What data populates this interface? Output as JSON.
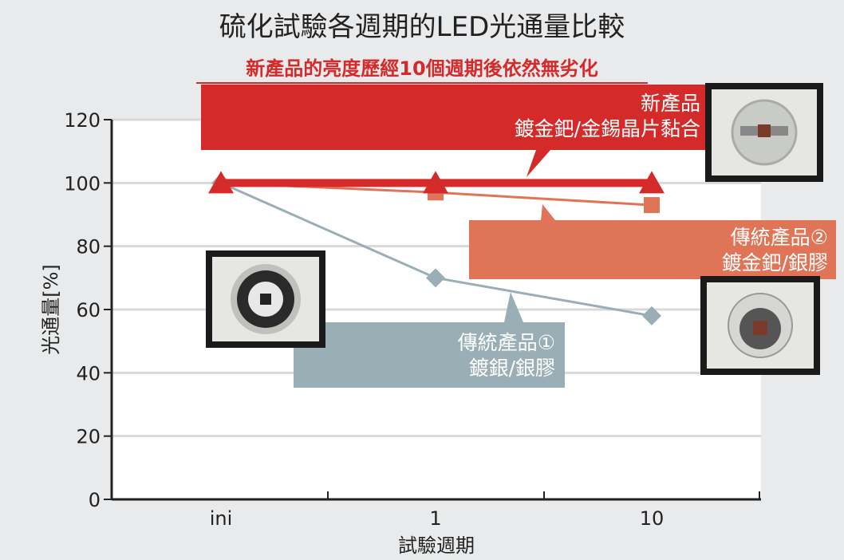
{
  "title": "硫化試驗各週期的LED光通量比較",
  "subtitle": "新產品的亮度歷經10個週期後依然無劣化",
  "callouts": {
    "new_product": {
      "line1": "新產品",
      "line2": "鍍金鈀/金錫晶片黏合"
    },
    "traditional_2": {
      "line1": "傳統產品②",
      "line2": "鍍金鈀/銀膠"
    },
    "traditional_1": {
      "line1": "傳統產品①",
      "line2": "鍍銀/銀膠"
    }
  },
  "chart_data": {
    "type": "line",
    "xlabel": "試驗週期",
    "ylabel": "光通量[%]",
    "categories": [
      "ini",
      "1",
      "10"
    ],
    "ylim": [
      0,
      120
    ],
    "yticks": [
      "0",
      "20",
      "40",
      "60",
      "80",
      "100",
      "120"
    ],
    "grid": true,
    "series": [
      {
        "name": "新產品",
        "values": [
          100,
          100,
          100
        ],
        "color": "#d42a2a",
        "marker": "triangle"
      },
      {
        "name": "傳統產品②",
        "values": [
          100,
          97,
          93
        ],
        "color": "#e07457",
        "marker": "square"
      },
      {
        "name": "傳統產品①",
        "values": [
          100,
          70,
          58
        ],
        "color": "#9aaeb6",
        "marker": "diamond"
      }
    ]
  }
}
